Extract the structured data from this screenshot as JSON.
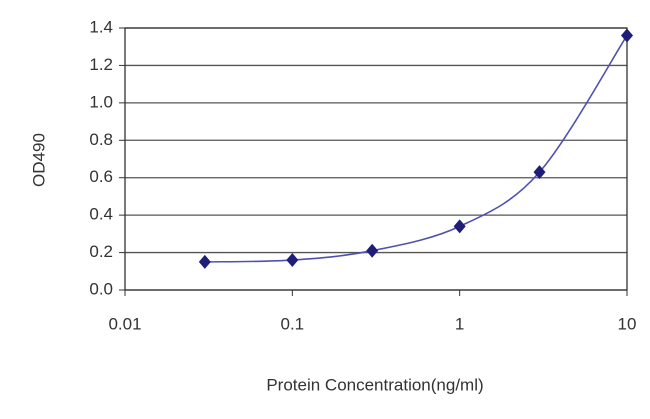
{
  "chart_data": {
    "type": "scatter",
    "x_label": "Protein Concentration(ng/ml)",
    "y_label": "OD490",
    "x_scale": "log",
    "grid": true,
    "series": [
      {
        "color": "#1e1e78",
        "line_color": "#5050b0",
        "x": [
          0.03,
          0.1,
          0.3,
          1,
          3,
          10
        ],
        "values": [
          0.15,
          0.16,
          0.21,
          0.34,
          0.63,
          1.36
        ]
      }
    ],
    "xlim": [
      0.01,
      10
    ],
    "xticks": [
      0.01,
      0.1,
      1,
      10
    ],
    "ylim": [
      0,
      1.4
    ],
    "yticks": [
      {
        "value": 0,
        "label": "0.0"
      },
      0.2,
      0.4,
      0.6,
      0.8,
      {
        "value": 1,
        "label": "1.0"
      },
      1.2,
      1.4
    ]
  }
}
